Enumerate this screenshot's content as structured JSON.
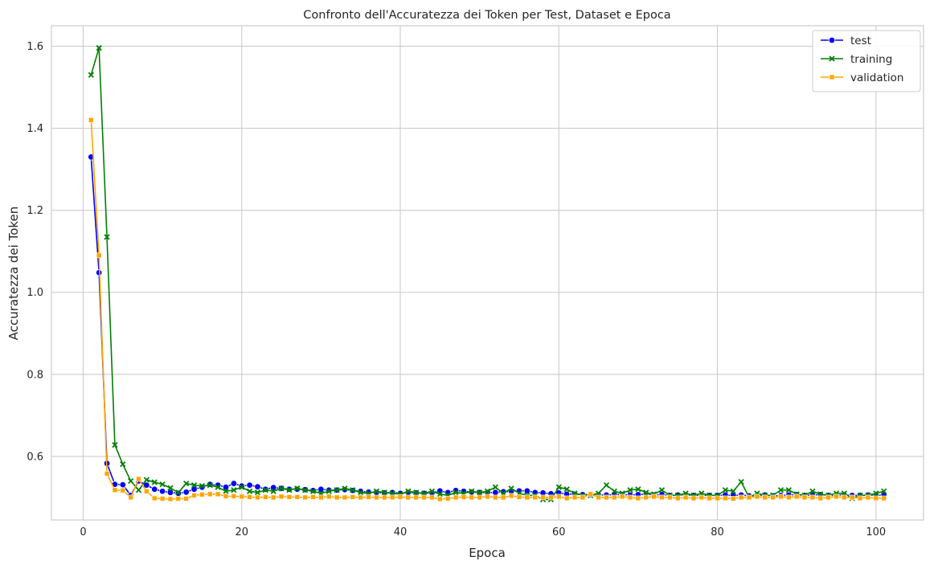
{
  "chart_data": {
    "type": "line",
    "title": "Confronto dell'Accuratezza dei Token per Test, Dataset e Epoca",
    "xlabel": "Epoca",
    "ylabel": "Accuratezza dei Token",
    "xlim": [
      -4,
      106
    ],
    "ylim": [
      0.445,
      1.65
    ],
    "xticks": [
      0,
      20,
      40,
      60,
      80,
      100
    ],
    "yticks": [
      0.6,
      0.8,
      1.0,
      1.2,
      1.4,
      1.6
    ],
    "grid": true,
    "legend": "top-right",
    "series": [
      {
        "name": "test",
        "color": "#0000ff",
        "marker": "circle",
        "x": [
          1,
          2,
          3,
          4,
          5,
          6,
          7,
          8,
          9,
          10,
          11,
          12,
          13,
          14,
          15,
          16,
          17,
          18,
          19,
          20,
          21,
          22,
          23,
          24,
          25,
          26,
          27,
          28,
          29,
          30,
          31,
          32,
          33,
          34,
          35,
          36,
          37,
          38,
          39,
          40,
          41,
          42,
          43,
          44,
          45,
          46,
          47,
          48,
          49,
          50,
          51,
          52,
          53,
          54,
          55,
          56,
          57,
          58,
          59,
          60,
          61,
          62,
          63,
          64,
          65,
          66,
          67,
          68,
          69,
          70,
          71,
          72,
          73,
          74,
          75,
          76,
          77,
          78,
          79,
          80,
          81,
          82,
          83,
          84,
          85,
          86,
          87,
          88,
          89,
          90,
          91,
          92,
          93,
          94,
          95,
          96,
          97,
          98,
          99,
          100,
          101
        ],
        "values": [
          1.33,
          1.048,
          0.583,
          0.532,
          0.531,
          0.505,
          0.54,
          0.53,
          0.52,
          0.515,
          0.512,
          0.51,
          0.513,
          0.52,
          0.525,
          0.532,
          0.53,
          0.525,
          0.534,
          0.528,
          0.53,
          0.526,
          0.52,
          0.524,
          0.522,
          0.52,
          0.52,
          0.519,
          0.517,
          0.52,
          0.518,
          0.518,
          0.519,
          0.517,
          0.515,
          0.513,
          0.512,
          0.511,
          0.512,
          0.51,
          0.512,
          0.511,
          0.51,
          0.511,
          0.516,
          0.512,
          0.517,
          0.515,
          0.513,
          0.512,
          0.512,
          0.512,
          0.514,
          0.515,
          0.516,
          0.516,
          0.512,
          0.511,
          0.509,
          0.511,
          0.508,
          0.508,
          0.507,
          0.507,
          0.506,
          0.506,
          0.507,
          0.507,
          0.506,
          0.507,
          0.508,
          0.506,
          0.507,
          0.505,
          0.506,
          0.506,
          0.505,
          0.505,
          0.505,
          0.505,
          0.506,
          0.505,
          0.506,
          0.504,
          0.505,
          0.506,
          0.504,
          0.505,
          0.506,
          0.507,
          0.505,
          0.506,
          0.507,
          0.505,
          0.506,
          0.506,
          0.505,
          0.505,
          0.506,
          0.505,
          0.506
        ]
      },
      {
        "name": "training",
        "color": "#008000",
        "marker": "x",
        "x": [
          1,
          2,
          3,
          4,
          5,
          6,
          7,
          8,
          9,
          10,
          11,
          12,
          13,
          14,
          15,
          16,
          17,
          18,
          19,
          20,
          21,
          22,
          23,
          24,
          25,
          26,
          27,
          28,
          29,
          30,
          31,
          32,
          33,
          34,
          35,
          36,
          37,
          38,
          39,
          40,
          41,
          42,
          43,
          44,
          45,
          46,
          47,
          48,
          49,
          50,
          51,
          52,
          53,
          54,
          55,
          56,
          57,
          58,
          59,
          60,
          61,
          62,
          63,
          64,
          65,
          66,
          67,
          68,
          69,
          70,
          71,
          72,
          73,
          74,
          75,
          76,
          77,
          78,
          79,
          80,
          81,
          82,
          83,
          84,
          85,
          86,
          87,
          88,
          89,
          90,
          91,
          92,
          93,
          94,
          95,
          96,
          97,
          98,
          99,
          100,
          101
        ],
        "values": [
          1.53,
          1.596,
          1.135,
          0.628,
          0.581,
          0.54,
          0.518,
          0.543,
          0.537,
          0.532,
          0.523,
          0.512,
          0.534,
          0.53,
          0.528,
          0.53,
          0.525,
          0.515,
          0.518,
          0.525,
          0.515,
          0.512,
          0.518,
          0.515,
          0.522,
          0.518,
          0.522,
          0.518,
          0.515,
          0.51,
          0.515,
          0.518,
          0.522,
          0.518,
          0.512,
          0.51,
          0.515,
          0.512,
          0.51,
          0.508,
          0.515,
          0.512,
          0.51,
          0.515,
          0.508,
          0.505,
          0.512,
          0.51,
          0.515,
          0.512,
          0.515,
          0.525,
          0.51,
          0.522,
          0.51,
          0.505,
          0.505,
          0.495,
          0.495,
          0.525,
          0.52,
          0.51,
          0.505,
          0.505,
          0.51,
          0.53,
          0.515,
          0.51,
          0.518,
          0.52,
          0.512,
          0.508,
          0.518,
          0.505,
          0.505,
          0.51,
          0.505,
          0.51,
          0.505,
          0.505,
          0.518,
          0.515,
          0.538,
          0.5,
          0.51,
          0.505,
          0.505,
          0.518,
          0.518,
          0.508,
          0.505,
          0.515,
          0.508,
          0.505,
          0.51,
          0.51,
          0.498,
          0.505,
          0.505,
          0.51,
          0.515
        ]
      },
      {
        "name": "validation",
        "color": "#ffa500",
        "marker": "square",
        "x": [
          1,
          2,
          3,
          4,
          5,
          6,
          7,
          8,
          9,
          10,
          11,
          12,
          13,
          14,
          15,
          16,
          17,
          18,
          19,
          20,
          21,
          22,
          23,
          24,
          25,
          26,
          27,
          28,
          29,
          30,
          31,
          32,
          33,
          34,
          35,
          36,
          37,
          38,
          39,
          40,
          41,
          42,
          43,
          44,
          45,
          46,
          47,
          48,
          49,
          50,
          51,
          52,
          53,
          54,
          55,
          56,
          57,
          58,
          59,
          60,
          61,
          62,
          63,
          64,
          65,
          66,
          67,
          68,
          69,
          70,
          71,
          72,
          73,
          74,
          75,
          76,
          77,
          78,
          79,
          80,
          81,
          82,
          83,
          84,
          85,
          86,
          87,
          88,
          89,
          90,
          91,
          92,
          93,
          94,
          95,
          96,
          97,
          98,
          99,
          100,
          101
        ],
        "values": [
          1.42,
          1.09,
          0.558,
          0.518,
          0.517,
          0.5,
          0.545,
          0.515,
          0.498,
          0.497,
          0.496,
          0.497,
          0.497,
          0.505,
          0.507,
          0.508,
          0.508,
          0.503,
          0.503,
          0.502,
          0.501,
          0.5,
          0.501,
          0.5,
          0.502,
          0.501,
          0.501,
          0.5,
          0.501,
          0.5,
          0.502,
          0.5,
          0.5,
          0.501,
          0.5,
          0.501,
          0.5,
          0.5,
          0.5,
          0.501,
          0.5,
          0.5,
          0.5,
          0.5,
          0.496,
          0.497,
          0.5,
          0.501,
          0.5,
          0.5,
          0.502,
          0.5,
          0.5,
          0.504,
          0.501,
          0.5,
          0.5,
          0.5,
          0.5,
          0.502,
          0.498,
          0.5,
          0.5,
          0.508,
          0.5,
          0.5,
          0.5,
          0.502,
          0.5,
          0.498,
          0.5,
          0.502,
          0.5,
          0.5,
          0.498,
          0.5,
          0.498,
          0.5,
          0.498,
          0.498,
          0.498,
          0.497,
          0.5,
          0.5,
          0.502,
          0.5,
          0.5,
          0.502,
          0.5,
          0.502,
          0.5,
          0.5,
          0.498,
          0.5,
          0.502,
          0.5,
          0.5,
          0.498,
          0.5,
          0.498,
          0.498
        ]
      }
    ]
  }
}
